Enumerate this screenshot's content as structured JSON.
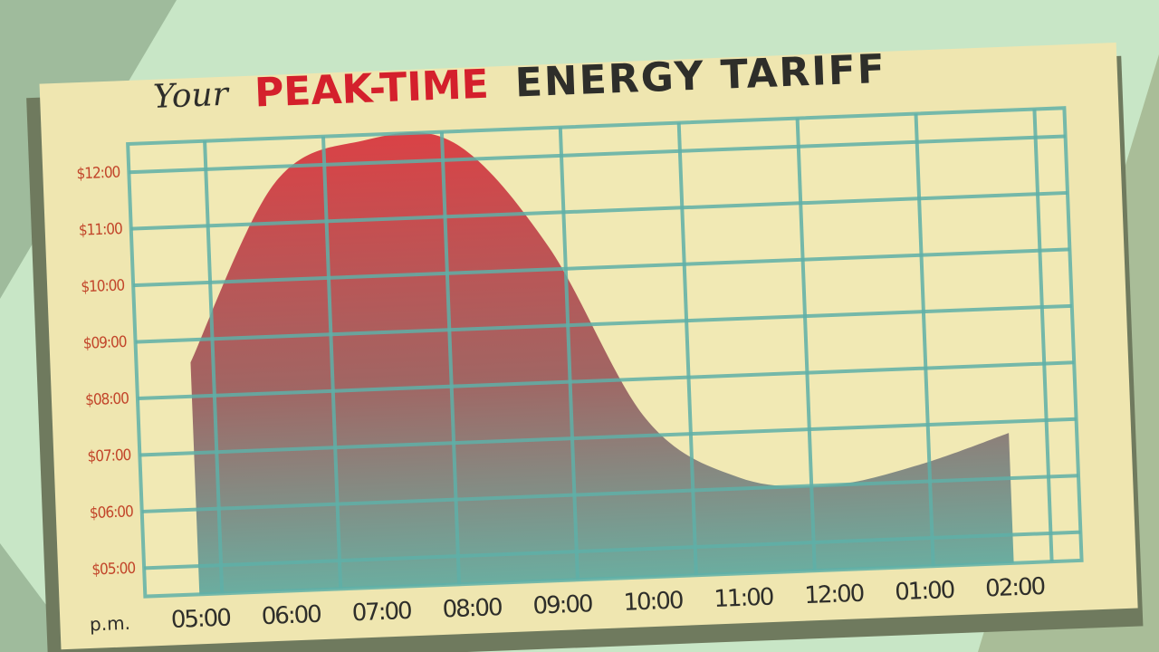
{
  "chart_data": {
    "type": "area",
    "title": {
      "prefix": "Your",
      "highlight": "PEAK-TIME",
      "rest": "ENERGY TARIFF"
    },
    "period": "p.m.",
    "categories": [
      "05:00",
      "06:00",
      "07:00",
      "08:00",
      "09:00",
      "10:00",
      "11:00",
      "12:00",
      "01:00",
      "02:00"
    ],
    "values": [
      8.6,
      11.7,
      12.4,
      12.3,
      10.4,
      7.3,
      6.2,
      6.0,
      6.3,
      6.8
    ],
    "ylim": [
      4.5,
      12.5
    ],
    "yticks": [
      {
        "value": 5,
        "label": "$05:00"
      },
      {
        "value": 6,
        "label": "$06:00"
      },
      {
        "value": 7,
        "label": "$07:00"
      },
      {
        "value": 8,
        "label": "$08:00"
      },
      {
        "value": 9,
        "label": "$09:00"
      },
      {
        "value": 10,
        "label": "$10:00"
      },
      {
        "value": 11,
        "label": "$11:00"
      },
      {
        "value": 12,
        "label": "$12:00"
      }
    ],
    "grid": true,
    "color": "#d8333c"
  }
}
